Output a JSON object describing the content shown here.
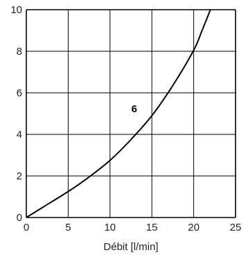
{
  "chart_data": {
    "type": "line",
    "title": "",
    "xlabel": "Débit [l/min]",
    "ylabel": "",
    "xlim": [
      0,
      25
    ],
    "ylim": [
      0,
      10
    ],
    "xticks": [
      "0",
      "5",
      "10",
      "15",
      "20",
      "25"
    ],
    "yticks": [
      "10",
      "8",
      "6",
      "4",
      "2",
      "0"
    ],
    "grid": true,
    "series": [
      {
        "curve_label": "6",
        "x": [
          0,
          2,
          5,
          7.5,
          10,
          12.5,
          15,
          17.5,
          20,
          21,
          22
        ],
        "y": [
          0,
          0.5,
          1.25,
          1.95,
          2.75,
          3.75,
          4.9,
          6.35,
          8.05,
          9.0,
          10.0
        ]
      }
    ],
    "colors": {
      "line": "#000000",
      "grid": "#000000"
    }
  }
}
